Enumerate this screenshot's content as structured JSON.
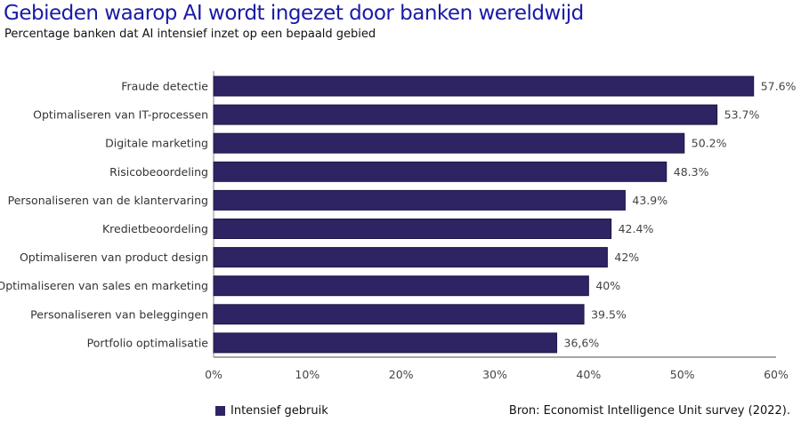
{
  "chart_data": {
    "type": "bar",
    "orientation": "horizontal",
    "title": "Gebieden waarop AI wordt ingezet door banken wereldwijd",
    "subtitle": "Percentage banken dat AI intensief inzet op een bepaald gebied",
    "categories": [
      "Fraude detectie",
      "Optimaliseren van IT-processen",
      "Digitale marketing",
      "Risicobeoordeling",
      "Personaliseren van de klantervaring",
      "Kredietbeoordeling",
      "Optimaliseren van product design",
      "Optimaliseren van sales en marketing",
      "Personaliseren van beleggingen",
      "Portfolio optimalisatie"
    ],
    "series": [
      {
        "name": "Intensief gebruik",
        "values": [
          57.6,
          53.7,
          50.2,
          48.3,
          43.9,
          42.4,
          42,
          40,
          39.5,
          36.6
        ],
        "color": "#2e2464"
      }
    ],
    "data_labels": [
      "57.6%",
      "53.7%",
      "50.2%",
      "48.3%",
      "43.9%",
      "42.4%",
      "42%",
      "40%",
      "39.5%",
      "36,6%"
    ],
    "xlim": [
      0,
      60
    ],
    "xticks": [
      "0%",
      "10%",
      "20%",
      "30%",
      "40%",
      "50%",
      "60%"
    ],
    "xlabel": "",
    "ylabel": "",
    "grid": false,
    "legend": "bottom-left",
    "source": "Bron: Economist Intelligence Unit survey (2022)."
  }
}
